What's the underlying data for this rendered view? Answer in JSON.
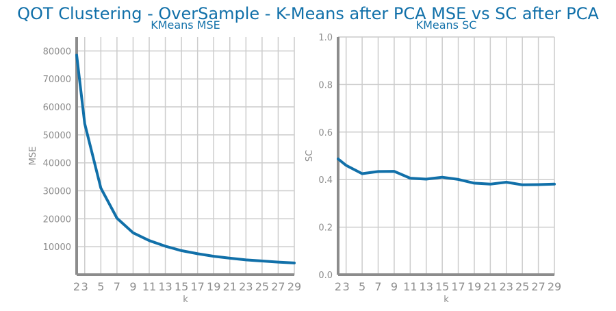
{
  "figure": {
    "title": "QOT Clustering - OverSample - K-Means after PCA MSE vs SC after PCA"
  },
  "colors": {
    "line": "#1170a9",
    "title": "#1170a9",
    "axis": "#8c8c8c",
    "grid": "#cccccc",
    "tick_text": "#8c8c8c"
  },
  "chart_data": [
    {
      "type": "line",
      "title": "KMeans MSE",
      "xlabel": "k",
      "ylabel": "MSE",
      "x": [
        2,
        3,
        5,
        7,
        9,
        11,
        13,
        15,
        17,
        19,
        21,
        23,
        25,
        27,
        29
      ],
      "series": [
        {
          "values": [
            78500,
            54000,
            31000,
            20200,
            15000,
            12200,
            10200,
            8600,
            7500,
            6600,
            5900,
            5300,
            4900,
            4500,
            4200
          ]
        }
      ],
      "xlim": [
        2,
        29
      ],
      "ylim": [
        0,
        85000
      ],
      "xticks": [
        2,
        3,
        5,
        7,
        9,
        11,
        13,
        15,
        17,
        19,
        21,
        23,
        25,
        27,
        29
      ],
      "yticks": [
        10000,
        20000,
        30000,
        40000,
        50000,
        60000,
        70000,
        80000
      ],
      "ytick_labels": [
        "10000",
        "20000",
        "30000",
        "40000",
        "50000",
        "60000",
        "70000",
        "80000"
      ],
      "grid": true
    },
    {
      "type": "line",
      "title": "KMeans SC",
      "xlabel": "k",
      "ylabel": "SC",
      "x": [
        2,
        3,
        5,
        7,
        9,
        11,
        13,
        15,
        17,
        19,
        21,
        23,
        25,
        27,
        29
      ],
      "series": [
        {
          "values": [
            0.487,
            0.46,
            0.425,
            0.434,
            0.435,
            0.406,
            0.402,
            0.41,
            0.401,
            0.385,
            0.381,
            0.389,
            0.378,
            0.379,
            0.381
          ]
        }
      ],
      "xlim": [
        2,
        29
      ],
      "ylim": [
        0.0,
        1.0
      ],
      "xticks": [
        2,
        3,
        5,
        7,
        9,
        11,
        13,
        15,
        17,
        19,
        21,
        23,
        25,
        27,
        29
      ],
      "yticks": [
        0.0,
        0.2,
        0.4,
        0.6,
        0.8,
        1.0
      ],
      "ytick_labels": [
        "0.0",
        "0.2",
        "0.4",
        "0.6",
        "0.8",
        "1.0"
      ],
      "grid": true
    }
  ]
}
